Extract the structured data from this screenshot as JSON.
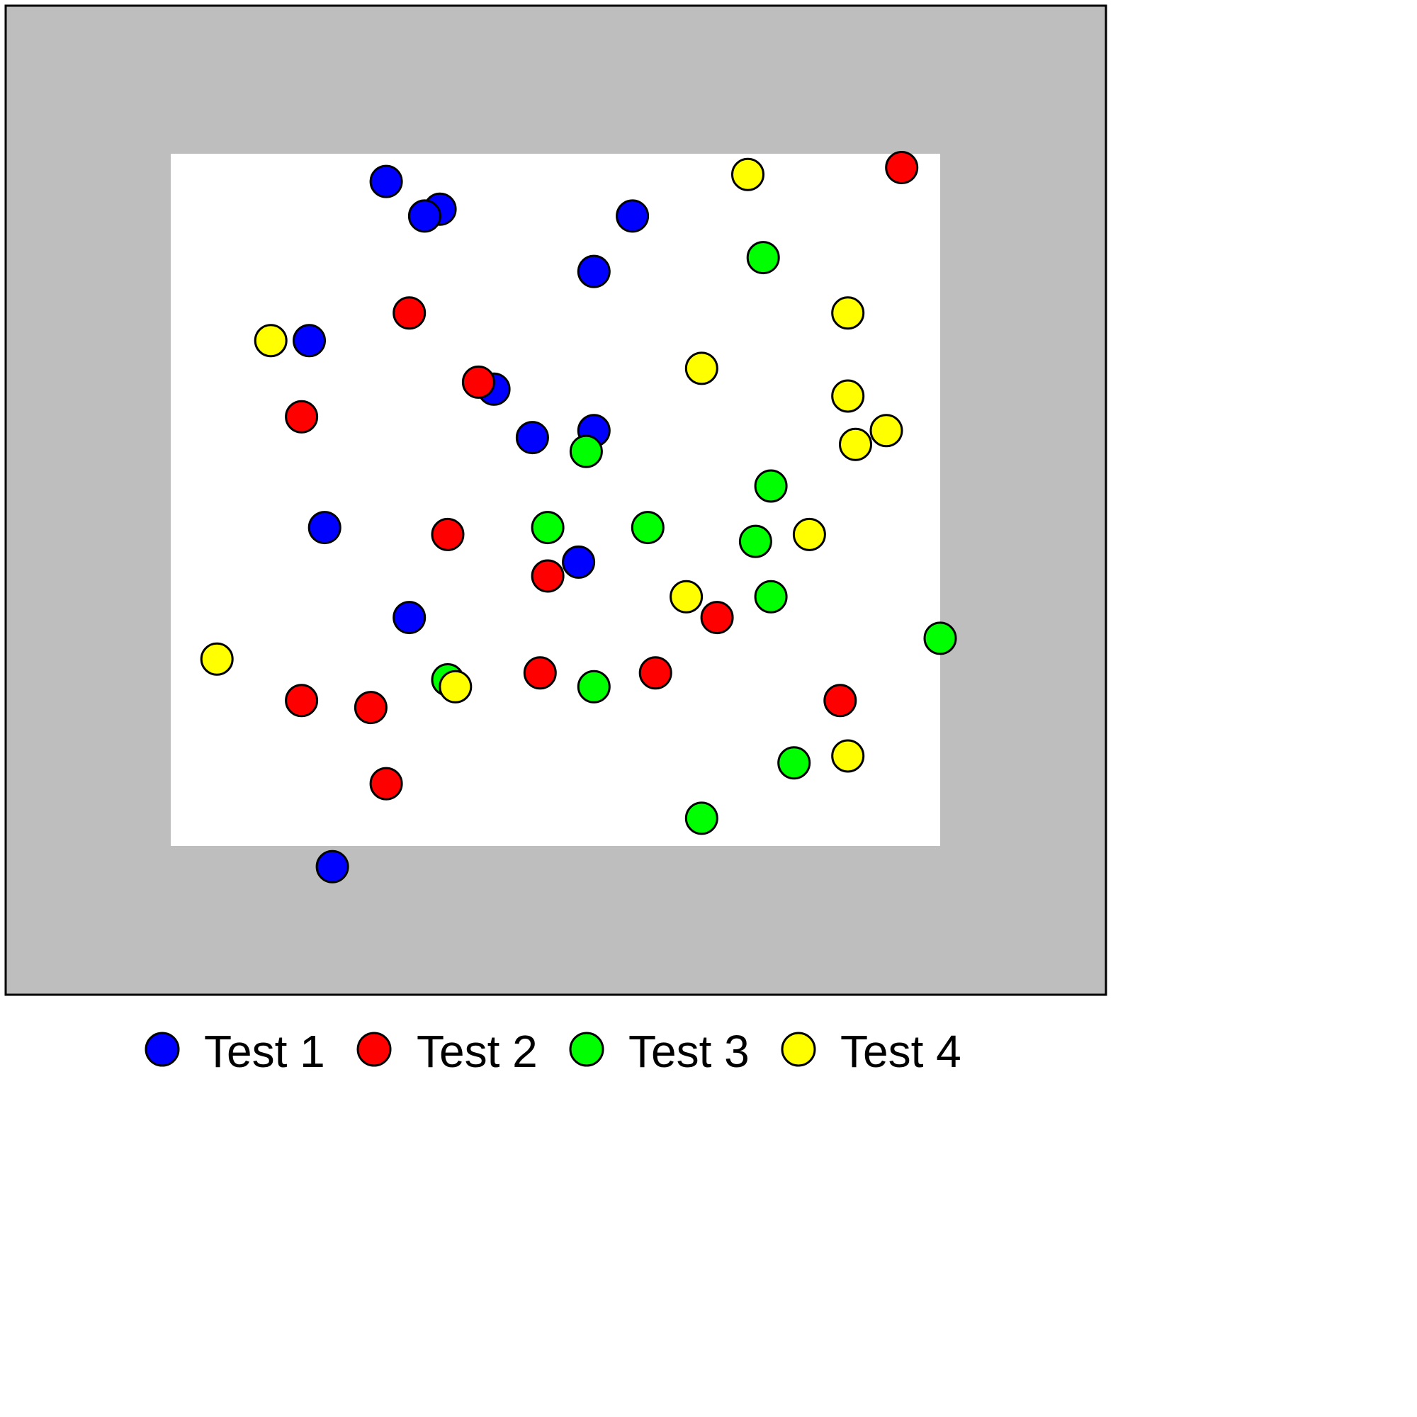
{
  "chart_data": {
    "type": "scatter",
    "title": "",
    "xlabel": "",
    "ylabel": "",
    "grid": false,
    "legend_position": "bottom",
    "xlim": [
      -0.217,
      1.217
    ],
    "ylim": [
      -0.217,
      1.217
    ],
    "inner_region": {
      "xlim": [
        0,
        1
      ],
      "ylim": [
        0,
        1
      ],
      "color": "#ffffff"
    },
    "outer_region_color": "#bebebe",
    "marker_edge_color": "#000000",
    "series": [
      {
        "name": "Test 1",
        "color": "#0000ff",
        "x": [
          0.28,
          0.35,
          0.33,
          0.6,
          0.55,
          0.18,
          0.42,
          0.47,
          0.55,
          0.2,
          0.53,
          0.31,
          0.21
        ],
        "y": [
          0.96,
          0.92,
          0.91,
          0.91,
          0.83,
          0.73,
          0.66,
          0.59,
          0.6,
          0.46,
          0.41,
          0.33,
          -0.03
        ]
      },
      {
        "name": "Test 2",
        "color": "#ff0000",
        "x": [
          0.95,
          0.31,
          0.4,
          0.17,
          0.36,
          0.49,
          0.71,
          0.48,
          0.63,
          0.17,
          0.26,
          0.87,
          0.28
        ],
        "y": [
          0.98,
          0.77,
          0.67,
          0.62,
          0.45,
          0.39,
          0.33,
          0.25,
          0.25,
          0.21,
          0.2,
          0.21,
          0.09
        ]
      },
      {
        "name": "Test 3",
        "color": "#00ff00",
        "x": [
          0.77,
          0.54,
          0.78,
          0.49,
          0.62,
          0.76,
          0.78,
          1.0,
          0.36,
          0.55,
          0.81,
          0.69
        ],
        "y": [
          0.85,
          0.57,
          0.52,
          0.46,
          0.46,
          0.44,
          0.36,
          0.3,
          0.24,
          0.23,
          0.12,
          0.04
        ]
      },
      {
        "name": "Test 4",
        "color": "#ffff00",
        "x": [
          0.75,
          0.88,
          0.13,
          0.69,
          0.88,
          0.93,
          0.89,
          0.83,
          0.67,
          0.06,
          0.37,
          0.88
        ],
        "y": [
          0.97,
          0.77,
          0.73,
          0.69,
          0.65,
          0.6,
          0.58,
          0.45,
          0.36,
          0.27,
          0.23,
          0.13
        ]
      }
    ]
  }
}
